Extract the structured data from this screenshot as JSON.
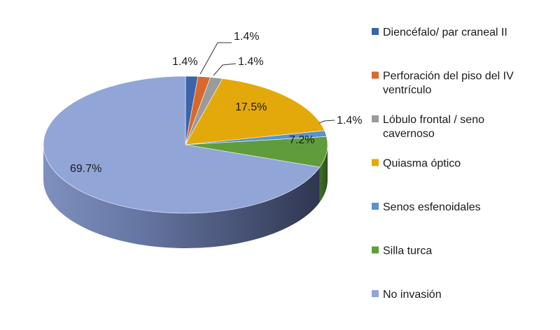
{
  "chart_data": {
    "type": "pie",
    "style": "3d",
    "title": "",
    "legend_position": "right",
    "slices": [
      {
        "label_lines": [
          "Diencéfalo/ par craneal II"
        ],
        "value": 1.4,
        "display": "1.4%",
        "color": "#3b64ad"
      },
      {
        "label_lines": [
          "Perforación del piso del IV",
          "ventrículo"
        ],
        "value": 1.4,
        "display": "1.4%",
        "color": "#d9692b"
      },
      {
        "label_lines": [
          "Lóbulo frontal / seno",
          "cavernoso"
        ],
        "value": 1.4,
        "display": "1.4%",
        "color": "#9b9b9b"
      },
      {
        "label_lines": [
          "Quiasma óptico"
        ],
        "value": 17.5,
        "display": "17.5%",
        "color": "#e3a90a"
      },
      {
        "label_lines": [
          "Senos esfenoidales"
        ],
        "value": 1.4,
        "display": "1.4%",
        "color": "#5a93cd"
      },
      {
        "label_lines": [
          "Silla turca"
        ],
        "value": 7.2,
        "display": "7.2%",
        "color": "#5f9d3c"
      },
      {
        "label_lines": [
          "No invasión"
        ],
        "value": 69.7,
        "display": "69.7%",
        "color": "#91a5d6"
      }
    ]
  }
}
